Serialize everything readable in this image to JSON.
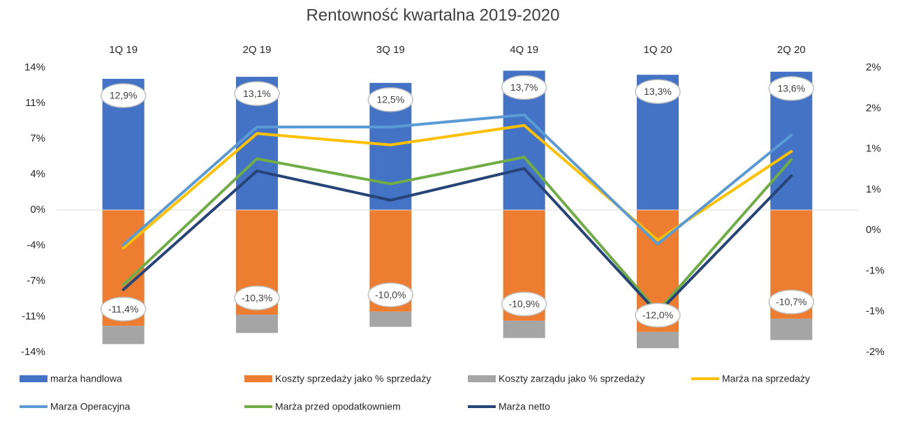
{
  "chart_data": {
    "type": "combo",
    "title": "Rentowność kwartalna 2019-2020",
    "categories": [
      "1Q 19",
      "2Q 19",
      "3Q 19",
      "4Q 19",
      "1Q 20",
      "2Q 20"
    ],
    "ylim": [
      -14,
      14
    ],
    "yticks": [
      {
        "value": 14,
        "label": "14%"
      },
      {
        "value": 10.5,
        "label": "11%"
      },
      {
        "value": 7,
        "label": "7%"
      },
      {
        "value": 3.5,
        "label": "4%"
      },
      {
        "value": 0,
        "label": "0%"
      },
      {
        "value": -3.5,
        "label": "-4%"
      },
      {
        "value": -7,
        "label": "-7%"
      },
      {
        "value": -10.5,
        "label": "-11%"
      },
      {
        "value": -14,
        "label": "-14%"
      }
    ],
    "y2lim": [
      -1.5,
      2
    ],
    "y2ticks": [
      {
        "value": 2,
        "label": "2%"
      },
      {
        "value": 1.5,
        "label": "2%"
      },
      {
        "value": 1,
        "label": "1%"
      },
      {
        "value": 0.5,
        "label": "1%"
      },
      {
        "value": 0,
        "label": "0%"
      },
      {
        "value": -0.5,
        "label": "-1%"
      },
      {
        "value": -1,
        "label": "-1%"
      },
      {
        "value": -1.5,
        "label": "-2%"
      }
    ],
    "series": [
      {
        "name": "marża handlowa",
        "type": "bar",
        "color": "#4472c4",
        "values": [
          12.9,
          13.1,
          12.5,
          13.7,
          13.3,
          13.6
        ],
        "value_labels": [
          "12,9%",
          "13,1%",
          "12,5%",
          "13,7%",
          "13,3%",
          "13,6%"
        ]
      },
      {
        "name": "Koszty sprzedaży jako % sprzedaży",
        "type": "bar",
        "color": "#ed7d31",
        "values": [
          -11.4,
          -10.3,
          -10.0,
          -10.9,
          -12.0,
          -10.7
        ],
        "value_labels": [
          "-11,4%",
          "-10,3%",
          "-10,0%",
          "-10,9%",
          "-12,0%",
          "-10,7%"
        ]
      },
      {
        "name": "Koszty zarządu jako % sprzedaży",
        "type": "bar",
        "color": "#a5a5a5",
        "values": [
          -1.8,
          -1.8,
          -1.5,
          -1.7,
          -1.6,
          -2.1
        ]
      },
      {
        "name": "Marża na sprzedaży",
        "type": "line",
        "axis": "y2",
        "color": "#ffc000",
        "values": [
          -0.22,
          1.19,
          1.05,
          1.29,
          -0.12,
          0.97
        ]
      },
      {
        "name": "Marza Operacyjna",
        "type": "line",
        "axis": "y2",
        "color": "#5b9bd5",
        "values": [
          -0.18,
          1.27,
          1.27,
          1.42,
          -0.17,
          1.17
        ]
      },
      {
        "name": "Marża przed opodatkowniem",
        "type": "line",
        "axis": "y2",
        "color": "#70ad47",
        "values": [
          -0.67,
          0.88,
          0.57,
          0.9,
          -1.0,
          0.87
        ]
      },
      {
        "name": "Marża netto",
        "type": "line",
        "axis": "y2",
        "color": "#264478",
        "values": [
          -0.73,
          0.73,
          0.37,
          0.76,
          -1.02,
          0.67
        ]
      }
    ]
  }
}
